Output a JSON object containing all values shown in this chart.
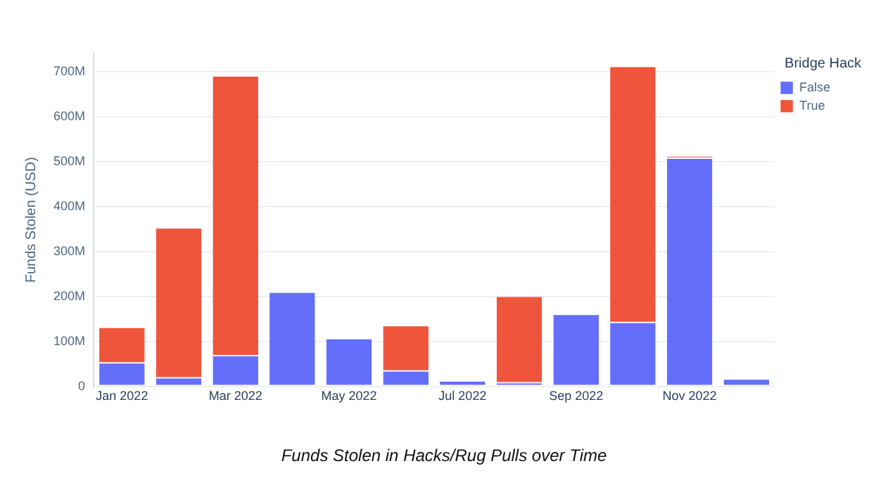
{
  "chart_data": {
    "type": "bar",
    "title": "Funds Stolen in Hacks/Rug Pulls over Time",
    "ylabel": "Funds Stolen (USD)",
    "legend_title": "Bridge Hack",
    "categories": [
      "Jan 2022",
      null,
      "Mar 2022",
      null,
      "May 2022",
      null,
      "Jul 2022",
      null,
      "Sep 2022",
      null,
      "Nov 2022",
      null
    ],
    "stacked": true,
    "series": [
      {
        "name": "False",
        "color": "#636efa",
        "values": [
          52000000,
          19000000,
          68000000,
          209000000,
          106000000,
          34000000,
          12000000,
          8000000,
          160000000,
          142000000,
          507000000,
          16000000
        ]
      },
      {
        "name": "True",
        "color": "#ef553b",
        "values": [
          79000000,
          333000000,
          622000000,
          null,
          null,
          101000000,
          null,
          192000000,
          null,
          569000000,
          5000000,
          null
        ]
      }
    ],
    "ylim": [
      0,
      740000000
    ],
    "yticks": [
      {
        "value": 0,
        "label": "0"
      },
      {
        "value": 100000000,
        "label": "100M"
      },
      {
        "value": 200000000,
        "label": "200M"
      },
      {
        "value": 300000000,
        "label": "300M"
      },
      {
        "value": 400000000,
        "label": "400M"
      },
      {
        "value": 500000000,
        "label": "500M"
      },
      {
        "value": 600000000,
        "label": "600M"
      },
      {
        "value": 700000000,
        "label": "700M"
      }
    ],
    "grid": "y",
    "legend": "top right"
  }
}
